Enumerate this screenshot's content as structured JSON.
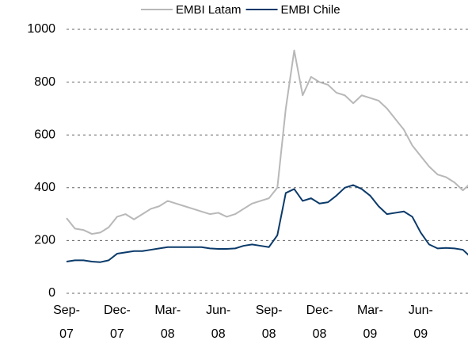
{
  "chart_data": {
    "type": "line",
    "categories": [
      "Sep-\n07",
      null,
      null,
      null,
      null,
      null,
      "Dec-\n07",
      null,
      null,
      null,
      null,
      null,
      "Mar-\n08",
      null,
      null,
      null,
      null,
      null,
      "Jun-\n08",
      null,
      null,
      null,
      null,
      null,
      "Sep-\n08",
      null,
      null,
      null,
      null,
      null,
      "Dec-\n08",
      null,
      null,
      null,
      null,
      null,
      "Mar-\n09",
      null,
      null,
      null,
      null,
      null,
      "Jun-\n09",
      null,
      null,
      null,
      null,
      null,
      null
    ],
    "series": [
      {
        "name": "EMBI Latam",
        "color": "#b8b8b8",
        "values": [
          285,
          245,
          240,
          225,
          230,
          250,
          290,
          300,
          280,
          300,
          320,
          330,
          350,
          340,
          330,
          320,
          310,
          300,
          305,
          290,
          300,
          320,
          340,
          350,
          360,
          400,
          700,
          920,
          750,
          820,
          800,
          790,
          760,
          750,
          720,
          750,
          740,
          730,
          700,
          660,
          620,
          560,
          520,
          480,
          450,
          440,
          420,
          390,
          420
        ]
      },
      {
        "name": "EMBI Chile",
        "color": "#0b3a6a",
        "values": [
          120,
          125,
          125,
          120,
          118,
          125,
          150,
          155,
          160,
          160,
          165,
          170,
          175,
          175,
          175,
          175,
          175,
          170,
          168,
          168,
          170,
          180,
          185,
          180,
          175,
          220,
          380,
          395,
          350,
          360,
          340,
          345,
          370,
          400,
          410,
          395,
          370,
          330,
          300,
          305,
          310,
          290,
          230,
          185,
          170,
          172,
          170,
          165,
          135
        ]
      }
    ],
    "ylim": [
      0,
      1000
    ],
    "yticks": [
      0,
      200,
      400,
      600,
      800,
      1000
    ],
    "grid": true,
    "legend": "top"
  }
}
